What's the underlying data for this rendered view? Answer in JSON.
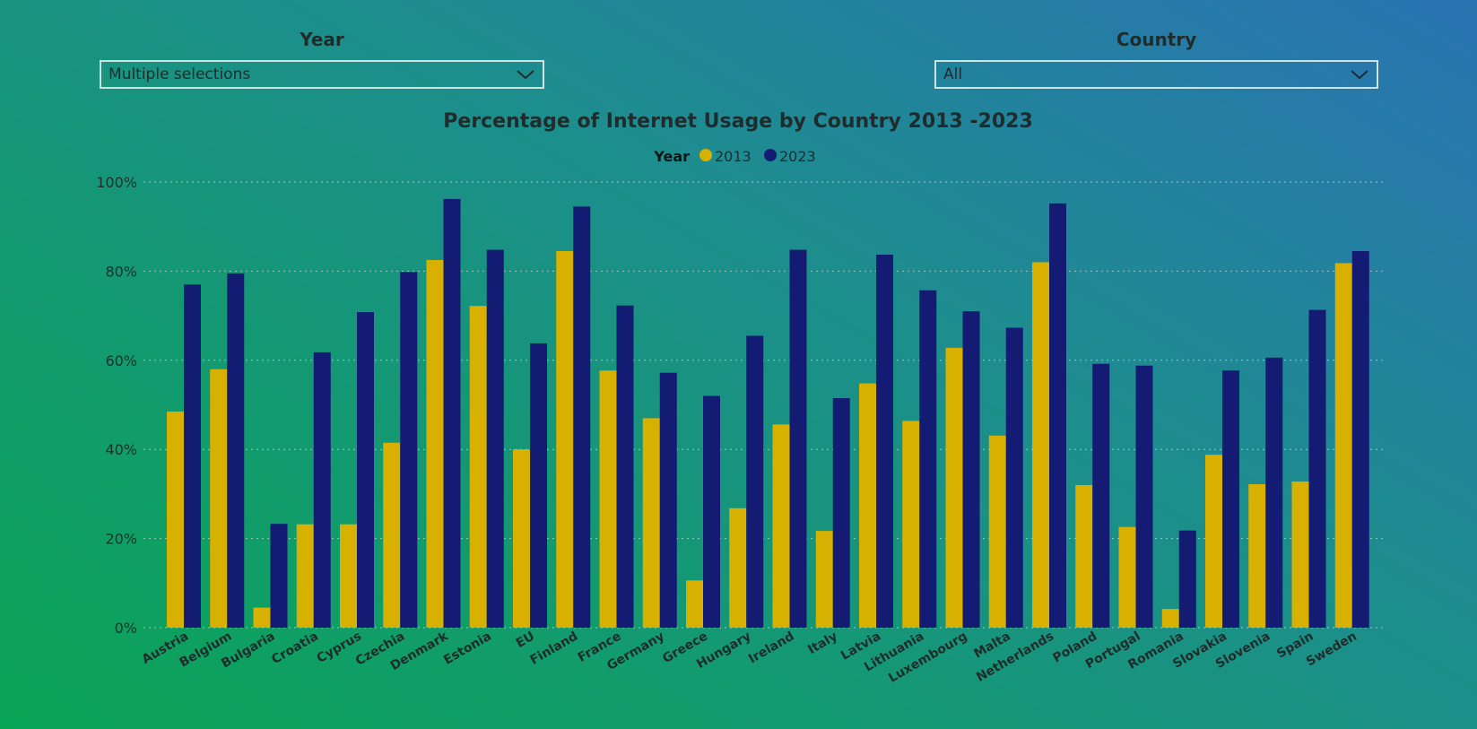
{
  "slicers": {
    "year": {
      "label": "Year",
      "value": "Multiple selections",
      "icon": "chevron-down-icon"
    },
    "country": {
      "label": "Country",
      "value": "All",
      "icon": "chevron-down-icon"
    }
  },
  "colors": {
    "series_2013": "#d8b100",
    "series_2023": "#141b73",
    "text": "#1f2c2c"
  },
  "chart_data": {
    "type": "bar",
    "title": "Percentage of Internet Usage by Country 2013 -2023",
    "legend": {
      "title": "Year",
      "position": "top-center"
    },
    "categories": [
      "Austria",
      "Belgium",
      "Bulgaria",
      "Croatia",
      "Cyprus",
      "Czechia",
      "Denmark",
      "Estonia",
      "EU",
      "Finland",
      "France",
      "Germany",
      "Greece",
      "Hungary",
      "Ireland",
      "Italy",
      "Latvia",
      "Lithuania",
      "Luxembourg",
      "Malta",
      "Netherlands",
      "Poland",
      "Portugal",
      "Romania",
      "Slovakia",
      "Slovenia",
      "Spain",
      "Sweden"
    ],
    "series": [
      {
        "name": "2013",
        "color": "#d8b100",
        "values": [
          48.5,
          58,
          4.5,
          23.2,
          23.2,
          41.5,
          82.5,
          72.2,
          40,
          84.5,
          57.7,
          47,
          10.6,
          26.8,
          45.6,
          21.7,
          54.8,
          46.4,
          62.8,
          43.1,
          82,
          32,
          22.6,
          4.2,
          38.8,
          32.2,
          32.8,
          81.8
        ]
      },
      {
        "name": "2023",
        "color": "#141b73",
        "values": [
          77,
          79.5,
          23.3,
          61.8,
          70.8,
          79.8,
          96.2,
          84.8,
          63.8,
          94.5,
          72.3,
          57.2,
          52,
          65.5,
          84.8,
          51.5,
          83.7,
          75.7,
          71,
          67.3,
          95.2,
          59.2,
          58.8,
          21.8,
          57.7,
          60.6,
          71.3,
          84.5
        ]
      }
    ],
    "yticks": [
      "0%",
      "20%",
      "40%",
      "60%",
      "80%",
      "100%"
    ],
    "ylim": [
      0,
      100
    ],
    "grid": true
  }
}
